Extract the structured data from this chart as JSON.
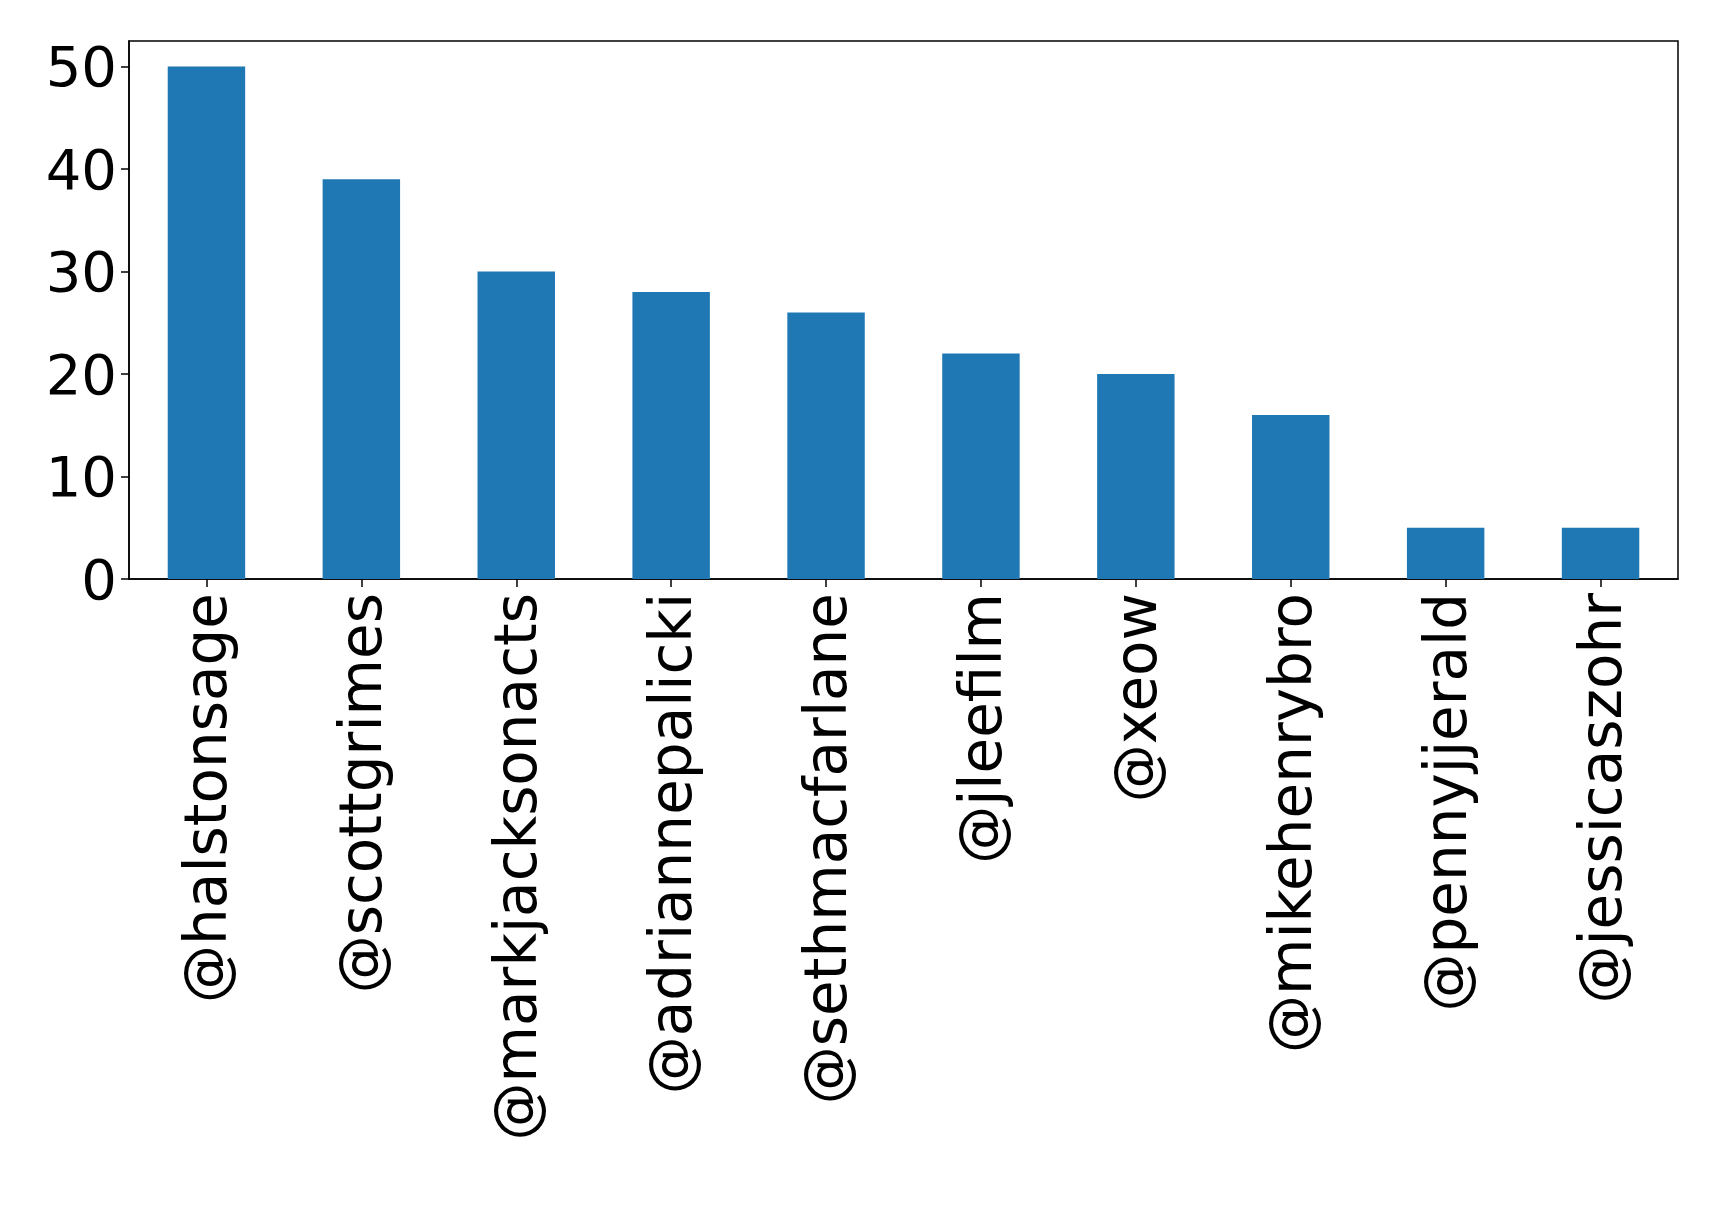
{
  "chart_data": {
    "type": "bar",
    "categories": [
      "@halstonsage",
      "@scottgrimes",
      "@markjacksonacts",
      "@adriannepalicki",
      "@sethmacfarlane",
      "@jleefilm",
      "@xeow",
      "@mikehenrybro",
      "@pennyjjerald",
      "@jessicaszohr"
    ],
    "values": [
      50,
      39,
      30,
      28,
      26,
      22,
      20,
      16,
      5,
      5
    ],
    "color": "#1f77b4",
    "ylim": [
      0,
      52.5
    ],
    "yticks": [
      0,
      10,
      20,
      30,
      40,
      50
    ]
  }
}
